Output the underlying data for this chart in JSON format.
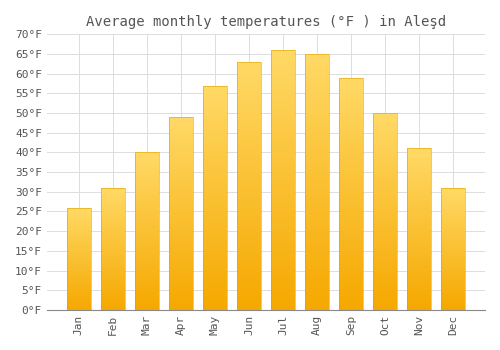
{
  "title": "Average monthly temperatures (°F ) in Aleşd",
  "months": [
    "Jan",
    "Feb",
    "Mar",
    "Apr",
    "May",
    "Jun",
    "Jul",
    "Aug",
    "Sep",
    "Oct",
    "Nov",
    "Dec"
  ],
  "values": [
    26,
    31,
    40,
    49,
    57,
    63,
    66,
    65,
    59,
    50,
    41,
    31
  ],
  "bar_color_bottom": "#F5A800",
  "bar_color_top": "#FFD966",
  "background_color": "#FFFFFF",
  "grid_color": "#DDDDDD",
  "text_color": "#555555",
  "ylim": [
    0,
    70
  ],
  "ytick_step": 5,
  "title_fontsize": 10,
  "tick_fontsize": 8,
  "font_family": "monospace"
}
